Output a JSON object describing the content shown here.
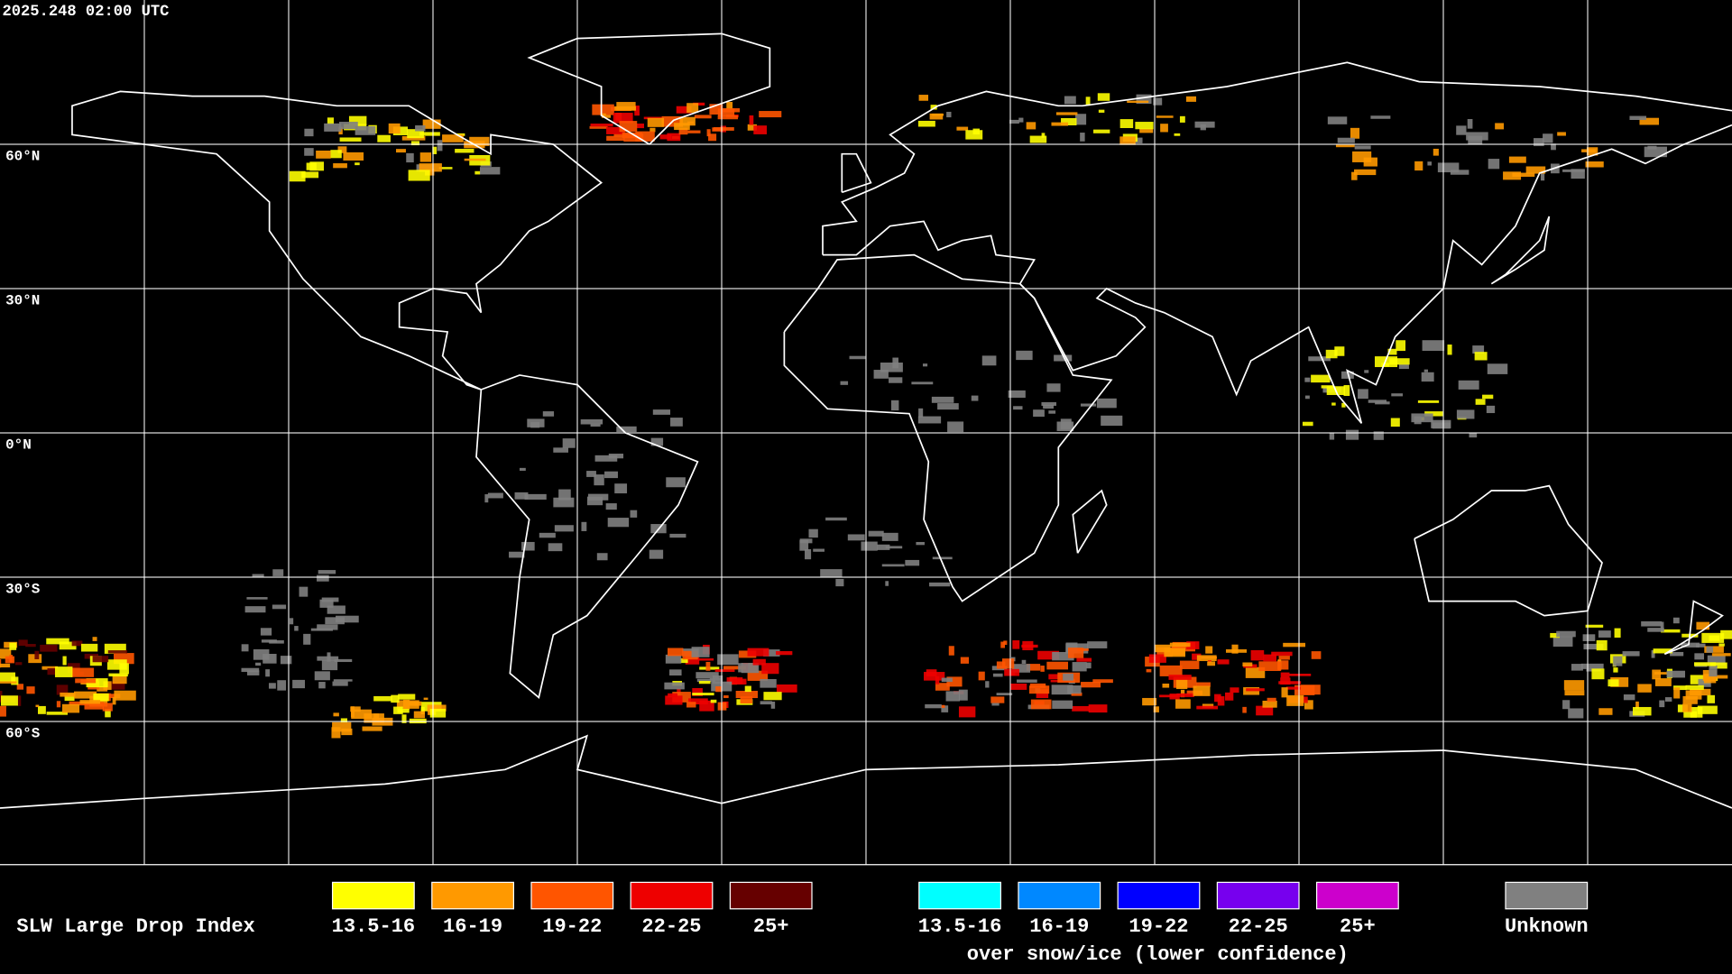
{
  "header": {
    "timestamp": "2025.248 02:00 UTC"
  },
  "grid": {
    "lat_labels": [
      "60°N",
      "30°N",
      "0°N",
      "30°S",
      "60°S"
    ]
  },
  "legend": {
    "title": "SLW Large Drop Index",
    "warm": {
      "items": [
        {
          "label": "13.5-16",
          "color": "#ffff00"
        },
        {
          "label": "16-19",
          "color": "#ff9900"
        },
        {
          "label": "19-22",
          "color": "#ff5500"
        },
        {
          "label": "22-25",
          "color": "#ee0000"
        },
        {
          "label": "25+",
          "color": "#660000"
        }
      ]
    },
    "snow": {
      "items": [
        {
          "label": "13.5-16",
          "color": "#00ffff"
        },
        {
          "label": "16-19",
          "color": "#0088ff"
        },
        {
          "label": "19-22",
          "color": "#0000ff"
        },
        {
          "label": "22-25",
          "color": "#7700ee"
        },
        {
          "label": "25+",
          "color": "#cc00cc"
        }
      ],
      "caption": "over snow/ice (lower confidence)"
    },
    "unknown": {
      "label": "Unknown",
      "color": "#808080"
    }
  }
}
